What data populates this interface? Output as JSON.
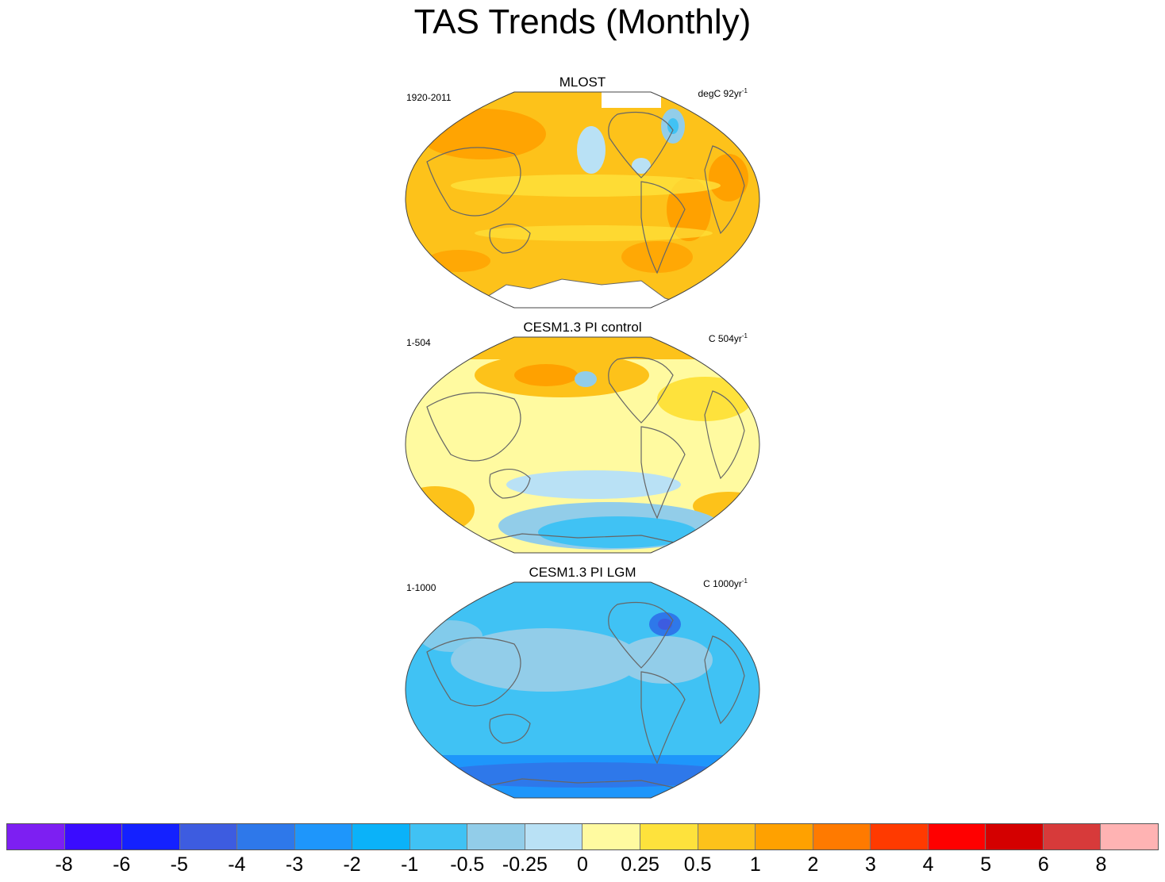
{
  "title": "TAS Trends (Monthly)",
  "panels": [
    {
      "title": "MLOST",
      "period": "1920-2011",
      "units_prefix": "degC 92yr",
      "units_exp": "-1",
      "pattern": "warm"
    },
    {
      "title": "CESM1.3 PI control",
      "period": "1-504",
      "units_prefix": "C 504yr",
      "units_exp": "-1",
      "pattern": "neutral"
    },
    {
      "title": "CESM1.3 PI LGM",
      "period": "1-1000",
      "units_prefix": "C 1000yr",
      "units_exp": "-1",
      "pattern": "cold"
    }
  ],
  "colorbar": {
    "colors": [
      "#7d1ff2",
      "#3a0cff",
      "#1421ff",
      "#3d5ce0",
      "#2e78ea",
      "#1e96fb",
      "#0bb2f9",
      "#40c2f4",
      "#92cde9",
      "#b9e1f5",
      "#fffaa0",
      "#fee23c",
      "#fdc21a",
      "#ffa100",
      "#ff7a00",
      "#ff3a00",
      "#ff0000",
      "#d40000",
      "#d73a3a",
      "#ffb3b3"
    ],
    "labels": [
      "-8",
      "-6",
      "-5",
      "-4",
      "-3",
      "-2",
      "-1",
      "-0.5",
      "-0.25",
      "0",
      "0.25",
      "0.5",
      "1",
      "2",
      "3",
      "4",
      "5",
      "6",
      "8"
    ]
  }
}
